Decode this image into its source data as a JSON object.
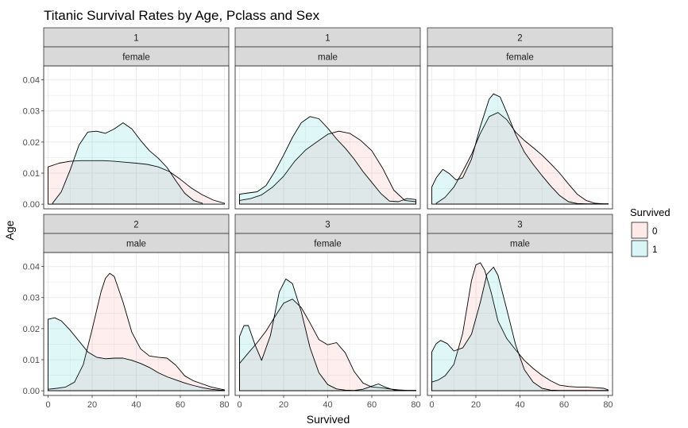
{
  "chart_data": {
    "type": "area",
    "subtype": "faceted density plot",
    "title": "Titanic Survival Rates by Age, Pclass and Sex",
    "xlabel": "Survived",
    "ylabel": "Age",
    "xlim": [
      -2,
      82
    ],
    "ylim": [
      -0.0015,
      0.0445
    ],
    "xticks": [
      0,
      20,
      40,
      60,
      80
    ],
    "yticks": [
      0.0,
      0.01,
      0.02,
      0.03,
      0.04
    ],
    "ytick_labels": [
      "0.00",
      "0.01",
      "0.02",
      "0.03",
      "0.04"
    ],
    "grid": true,
    "legend": {
      "title": "Survived",
      "position": "right",
      "entries": [
        {
          "label": "0",
          "fill": "#F8766D"
        },
        {
          "label": "1",
          "fill": "#00BFC4"
        }
      ]
    },
    "facets": [
      {
        "strip1": "1",
        "strip2": "female",
        "series": [
          {
            "group": "0",
            "x": [
              0,
              5,
              10,
              15,
              20,
              25,
              30,
              35,
              40,
              45,
              50,
              55,
              60,
              65,
              70,
              75,
              80
            ],
            "y": [
              0.012,
              0.0132,
              0.0138,
              0.014,
              0.014,
              0.014,
              0.0138,
              0.0135,
              0.0132,
              0.0128,
              0.012,
              0.0105,
              0.008,
              0.0052,
              0.003,
              0.0013,
              0.0003
            ]
          },
          {
            "group": "1",
            "x": [
              2,
              6,
              10,
              14,
              18,
              22,
              26,
              30,
              34,
              38,
              42,
              46,
              50,
              54,
              58,
              62,
              66,
              70
            ],
            "y": [
              0.0003,
              0.004,
              0.011,
              0.019,
              0.0232,
              0.0235,
              0.0228,
              0.0242,
              0.0262,
              0.0242,
              0.0205,
              0.0172,
              0.0148,
              0.0118,
              0.0075,
              0.0035,
              0.0012,
              0.0003
            ]
          }
        ]
      },
      {
        "strip1": "1",
        "strip2": "male",
        "series": [
          {
            "group": "0",
            "x": [
              0,
              5,
              10,
              15,
              20,
              25,
              30,
              35,
              40,
              45,
              50,
              55,
              60,
              65,
              70,
              75,
              80
            ],
            "y": [
              0.0012,
              0.0018,
              0.003,
              0.0055,
              0.009,
              0.0138,
              0.0175,
              0.02,
              0.0225,
              0.0235,
              0.0228,
              0.0205,
              0.0172,
              0.0115,
              0.0045,
              0.0012,
              0.0008
            ]
          },
          {
            "group": "1",
            "x": [
              0,
              4,
              8,
              12,
              16,
              20,
              24,
              28,
              32,
              36,
              40,
              44,
              48,
              52,
              56,
              60,
              64,
              68,
              72,
              76,
              80
            ],
            "y": [
              0.0032,
              0.0036,
              0.004,
              0.006,
              0.0105,
              0.0158,
              0.0215,
              0.0262,
              0.0282,
              0.0275,
              0.0245,
              0.021,
              0.018,
              0.0145,
              0.0105,
              0.007,
              0.0035,
              0.001,
              0.0008,
              0.0018,
              0.0015
            ]
          }
        ]
      },
      {
        "strip1": "2",
        "strip2": "female",
        "series": [
          {
            "group": "0",
            "x": [
              2,
              6,
              10,
              14,
              18,
              22,
              26,
              30,
              34,
              38,
              42,
              46,
              50,
              54,
              58,
              62,
              66,
              70,
              74,
              78,
              80
            ],
            "y": [
              0.0003,
              0.0022,
              0.0055,
              0.0105,
              0.016,
              0.0228,
              0.0282,
              0.0295,
              0.0272,
              0.0232,
              0.0205,
              0.0182,
              0.0158,
              0.013,
              0.01,
              0.0065,
              0.0032,
              0.0012,
              0.0003,
              0.0001,
              0.0001
            ]
          },
          {
            "group": "1",
            "x": [
              0,
              2,
              5,
              8,
              11,
              14,
              18,
              22,
              26,
              28,
              31,
              34,
              38,
              42,
              46,
              50,
              54,
              58,
              62,
              66,
              70,
              74,
              80
            ],
            "y": [
              0.0055,
              0.0085,
              0.0112,
              0.0098,
              0.0078,
              0.0085,
              0.0145,
              0.025,
              0.0338,
              0.0355,
              0.0345,
              0.0295,
              0.0225,
              0.0168,
              0.0128,
              0.0092,
              0.0058,
              0.0028,
              0.0008,
              0.0002,
              0.0001,
              0.0001,
              0.0001
            ]
          }
        ]
      },
      {
        "strip1": "2",
        "strip2": "male",
        "series": [
          {
            "group": "0",
            "x": [
              0,
              4,
              8,
              12,
              16,
              20,
              24,
              26,
              28,
              30,
              34,
              38,
              42,
              46,
              50,
              54,
              58,
              62,
              66,
              70,
              74,
              78,
              80
            ],
            "y": [
              0.0005,
              0.0008,
              0.0012,
              0.0028,
              0.0085,
              0.0198,
              0.0318,
              0.0362,
              0.0378,
              0.0368,
              0.0285,
              0.0188,
              0.0135,
              0.0112,
              0.0108,
              0.0105,
              0.0082,
              0.0048,
              0.0032,
              0.0022,
              0.0012,
              0.0006,
              0.0003
            ]
          },
          {
            "group": "1",
            "x": [
              0,
              3,
              6,
              10,
              14,
              18,
              22,
              26,
              30,
              34,
              38,
              42,
              46,
              50,
              54,
              58,
              62,
              66,
              70,
              74,
              78,
              80
            ],
            "y": [
              0.023,
              0.0235,
              0.0225,
              0.0195,
              0.016,
              0.0125,
              0.0108,
              0.0103,
              0.0105,
              0.0105,
              0.0098,
              0.0088,
              0.0075,
              0.0058,
              0.0045,
              0.0035,
              0.0025,
              0.0017,
              0.001,
              0.0005,
              0.0002,
              0.0001
            ]
          }
        ]
      },
      {
        "strip1": "3",
        "strip2": "female",
        "series": [
          {
            "group": "0",
            "x": [
              0,
              4,
              8,
              12,
              16,
              20,
              24,
              28,
              32,
              36,
              40,
              44,
              48,
              52,
              56,
              60,
              64,
              68,
              72,
              76,
              80
            ],
            "y": [
              0.0088,
              0.0122,
              0.0155,
              0.0192,
              0.0238,
              0.0282,
              0.0295,
              0.0268,
              0.0218,
              0.0165,
              0.0148,
              0.0155,
              0.0122,
              0.0062,
              0.0025,
              0.0012,
              0.001,
              0.0006,
              0.0003,
              0.0001,
              0.0001
            ]
          },
          {
            "group": "1",
            "x": [
              0,
              2,
              4,
              7,
              10,
              14,
              18,
              21,
              24,
              28,
              32,
              36,
              40,
              44,
              48,
              52,
              56,
              60,
              63,
              66,
              70,
              74,
              80
            ],
            "y": [
              0.0175,
              0.021,
              0.021,
              0.0148,
              0.0098,
              0.0178,
              0.0318,
              0.036,
              0.0345,
              0.0255,
              0.0138,
              0.0058,
              0.002,
              0.0006,
              0.0002,
              0.0001,
              0.0005,
              0.0015,
              0.0022,
              0.0012,
              0.0003,
              0.0001,
              0.0001
            ]
          }
        ]
      },
      {
        "strip1": "3",
        "strip2": "male",
        "series": [
          {
            "group": "0",
            "x": [
              0,
              3,
              6,
              10,
              14,
              18,
              20,
              22,
              24,
              27,
              30,
              34,
              38,
              42,
              46,
              50,
              54,
              58,
              62,
              66,
              70,
              74,
              78,
              80
            ],
            "y": [
              0.0028,
              0.0035,
              0.0048,
              0.0085,
              0.0185,
              0.0355,
              0.0405,
              0.0412,
              0.0388,
              0.0315,
              0.0225,
              0.0168,
              0.0132,
              0.0098,
              0.0072,
              0.005,
              0.0032,
              0.0018,
              0.0014,
              0.0012,
              0.0012,
              0.001,
              0.0008,
              0.0003
            ]
          },
          {
            "group": "1",
            "x": [
              0,
              2,
              4,
              7,
              10,
              14,
              18,
              22,
              25,
              28,
              30,
              34,
              38,
              42,
              46,
              50,
              54,
              58,
              62,
              66,
              70,
              74,
              80
            ],
            "y": [
              0.0125,
              0.0152,
              0.0162,
              0.0152,
              0.0128,
              0.0138,
              0.0182,
              0.0285,
              0.0375,
              0.0398,
              0.0372,
              0.0262,
              0.0148,
              0.0068,
              0.0028,
              0.0008,
              0.0002,
              0.0001,
              0.0001,
              0.0001,
              0.0001,
              0.0001,
              0.0001
            ]
          }
        ]
      }
    ]
  }
}
